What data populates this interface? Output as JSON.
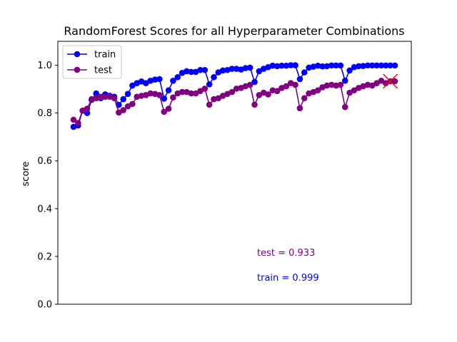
{
  "chart_data": {
    "type": "line",
    "title": "RandomForest Scores for all Hyperparameter Combinations",
    "xlabel": "",
    "ylabel": "score",
    "ylim": [
      0,
      1.1
    ],
    "yticks": [
      "0.0",
      "0.2",
      "0.4",
      "0.6",
      "0.8",
      "1.0"
    ],
    "grid": false,
    "legend_position": "upper-left",
    "x": [
      0,
      1,
      2,
      3,
      4,
      5,
      6,
      7,
      8,
      9,
      10,
      11,
      12,
      13,
      14,
      15,
      16,
      17,
      18,
      19,
      20,
      21,
      22,
      23,
      24,
      25,
      26,
      27,
      28,
      29,
      30,
      31,
      32,
      33,
      34,
      35,
      36,
      37,
      38,
      39,
      40,
      41,
      42,
      43,
      44,
      45,
      46,
      47,
      48,
      49,
      50,
      51,
      52,
      53,
      54,
      55,
      56,
      57,
      58,
      59,
      60,
      61,
      62,
      63,
      64,
      65,
      66,
      67,
      68,
      69,
      70,
      71
    ],
    "series": [
      {
        "name": "train",
        "color": "#0000ff",
        "values": [
          0.742,
          0.748,
          0.81,
          0.8,
          0.855,
          0.882,
          0.862,
          0.878,
          0.872,
          0.868,
          0.834,
          0.858,
          0.88,
          0.915,
          0.925,
          0.932,
          0.925,
          0.935,
          0.94,
          0.942,
          0.86,
          0.895,
          0.935,
          0.95,
          0.968,
          0.975,
          0.972,
          0.972,
          0.98,
          0.98,
          0.92,
          0.95,
          0.97,
          0.978,
          0.98,
          0.985,
          0.985,
          0.982,
          0.988,
          0.99,
          0.93,
          0.975,
          0.985,
          0.992,
          0.998,
          0.996,
          0.998,
          0.998,
          1.0,
          1.0,
          0.942,
          0.97,
          0.99,
          0.994,
          0.998,
          0.995,
          0.996,
          0.999,
          0.999,
          0.999,
          0.935,
          0.978,
          0.992,
          0.996,
          0.997,
          0.999,
          0.999,
          0.999,
          0.999,
          0.999,
          0.999,
          0.999
        ]
      },
      {
        "name": "test",
        "color": "#800080",
        "values": [
          0.772,
          0.758,
          0.81,
          0.818,
          0.858,
          0.862,
          0.868,
          0.868,
          0.868,
          0.862,
          0.802,
          0.812,
          0.828,
          0.838,
          0.868,
          0.872,
          0.875,
          0.882,
          0.88,
          0.875,
          0.805,
          0.818,
          0.865,
          0.882,
          0.888,
          0.888,
          0.882,
          0.882,
          0.892,
          0.902,
          0.835,
          0.858,
          0.862,
          0.872,
          0.88,
          0.888,
          0.902,
          0.905,
          0.912,
          0.918,
          0.835,
          0.875,
          0.885,
          0.878,
          0.895,
          0.892,
          0.905,
          0.912,
          0.925,
          0.918,
          0.82,
          0.862,
          0.882,
          0.888,
          0.895,
          0.908,
          0.915,
          0.918,
          0.915,
          0.918,
          0.825,
          0.885,
          0.895,
          0.905,
          0.912,
          0.918,
          0.915,
          0.925,
          0.935,
          0.925,
          0.933,
          0.933
        ]
      }
    ],
    "best_marker": {
      "x": 70,
      "y": 0.933,
      "color": "#ff0000"
    },
    "annotations": [
      {
        "text": "test = 0.933",
        "color": "#800080"
      },
      {
        "text": "train = 0.999",
        "color": "#0000ff"
      }
    ]
  }
}
